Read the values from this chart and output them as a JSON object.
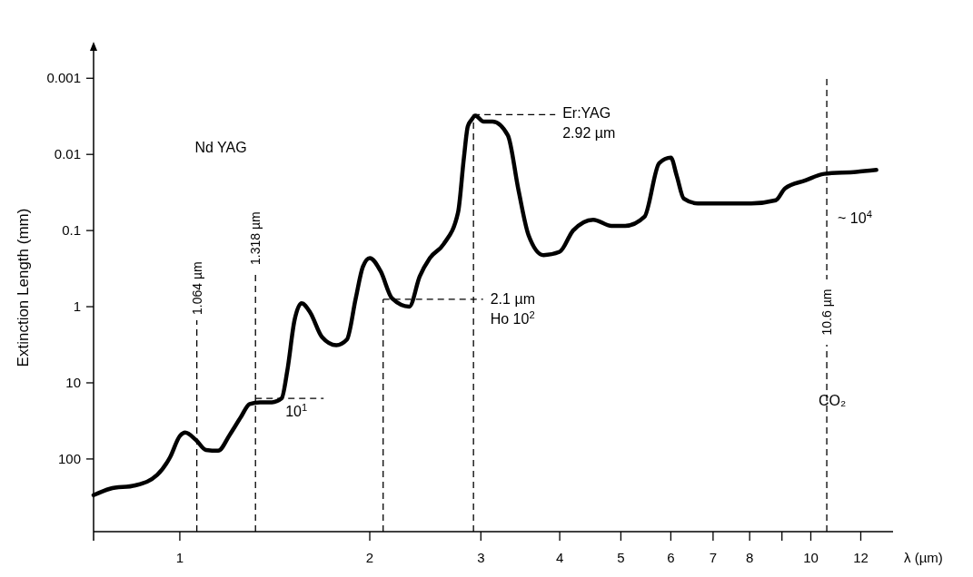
{
  "chart_data": {
    "type": "line",
    "xlabel": "λ  (µm)",
    "ylabel": "Extinction Length (mm)",
    "log": "xy",
    "x": [
      0.73,
      0.775,
      0.85,
      0.92,
      0.965,
      1.0,
      1.02,
      1.06,
      1.1,
      1.15,
      1.2,
      1.25,
      1.29,
      1.34,
      1.4,
      1.45,
      1.48,
      1.52,
      1.56,
      1.61,
      1.68,
      1.77,
      1.84,
      1.9,
      1.95,
      2.0,
      2.08,
      2.17,
      2.31,
      2.4,
      2.49,
      2.62,
      2.76,
      2.82,
      2.86,
      2.9,
      2.94,
      3.03,
      3.13,
      3.31,
      3.44,
      3.57,
      3.77,
      4.0,
      4.2,
      4.52,
      4.83,
      5.08,
      5.45,
      5.75,
      6.0,
      6.13,
      6.29,
      6.62,
      7.08,
      8.04,
      8.8,
      9.1,
      9.8,
      10.5,
      11.8,
      12.7
    ],
    "series": [
      {
        "color": "#000000",
        "values": [
          299,
          246,
          222,
          163,
          95,
          50,
          45,
          56,
          76,
          78,
          48,
          28,
          19,
          18,
          18,
          16,
          7,
          1.5,
          0.9,
          1.2,
          2.5,
          3.2,
          2.7,
          0.78,
          0.3,
          0.23,
          0.34,
          0.78,
          1.0,
          0.4,
          0.23,
          0.15,
          0.058,
          0.011,
          0.0043,
          0.0035,
          0.0031,
          0.0037,
          0.0037,
          0.0056,
          0.029,
          0.115,
          0.21,
          0.19,
          0.1,
          0.072,
          0.087,
          0.087,
          0.066,
          0.013,
          0.011,
          0.019,
          0.038,
          0.044,
          0.044,
          0.044,
          0.04,
          0.028,
          0.022,
          0.018,
          0.017,
          0.016
        ]
      }
    ],
    "xlim": [
      0.73,
      13.5
    ],
    "ylim": [
      900,
      0.00035
    ],
    "xticks": [
      1,
      2,
      3,
      4,
      5,
      6,
      7,
      8,
      {
        "value": 9,
        "label": null
      },
      10,
      12
    ],
    "yticks": [
      0.001,
      0.01,
      0.1,
      1,
      10,
      100
    ],
    "ref_lines": [
      {
        "axis": "x",
        "value": 1.064,
        "label": "1.064 µm",
        "line_style": "dashed"
      },
      {
        "axis": "x",
        "value": 1.318,
        "label": "1.318 µm",
        "line_style": "dashed"
      },
      {
        "axis": "x",
        "value": 2.1,
        "label": null,
        "line_style": "dashed"
      },
      {
        "axis": "x",
        "value": 2.92,
        "label": null,
        "line_style": "dashed"
      },
      {
        "axis": "x",
        "value": 10.6,
        "label": "10.6 µm",
        "line_style": "dashed"
      }
    ],
    "annotations": [
      "Nd YAG",
      {
        "text": "Er:YAG\n2.92 µm",
        "x": 2.92,
        "y": 0.003
      },
      {
        "text": "2.1 µm\nHo 10$^{2}$",
        "x": 2.1,
        "y": 0.8
      },
      {
        "text": "10$^{1}$",
        "x": 1.318,
        "y": 16
      },
      {
        "text": "~ 10$^{4}$",
        "x": 10.6,
        "y": 0.07
      },
      {
        "text": "CO₂",
        "x": 10.6,
        "y": 20
      }
    ],
    "grid": false
  }
}
